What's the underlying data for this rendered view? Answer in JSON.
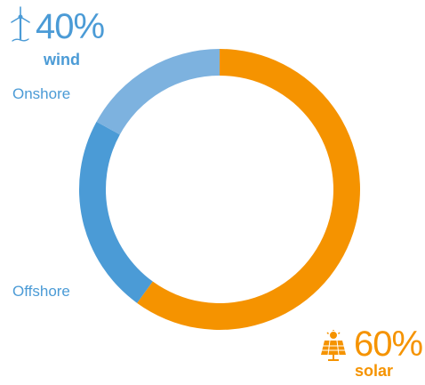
{
  "chart_data": {
    "type": "pie",
    "donut": true,
    "groups": [
      {
        "percent_label": "40%",
        "category_label": "wind",
        "icon": "wind-turbine-icon",
        "color": "#4b9bd6"
      },
      {
        "percent_label": "60%",
        "category_label": "solar",
        "icon": "solar-panel-icon",
        "color": "#f59300"
      }
    ],
    "slices": [
      {
        "label": "",
        "value": 60,
        "color": "#f59300"
      },
      {
        "label": "Offshore",
        "value": 23,
        "color": "#4b9bd6"
      },
      {
        "label": "Onshore",
        "value": 17,
        "color": "#7db2df"
      }
    ],
    "start_angle_deg": 0,
    "direction": "clockwise"
  }
}
